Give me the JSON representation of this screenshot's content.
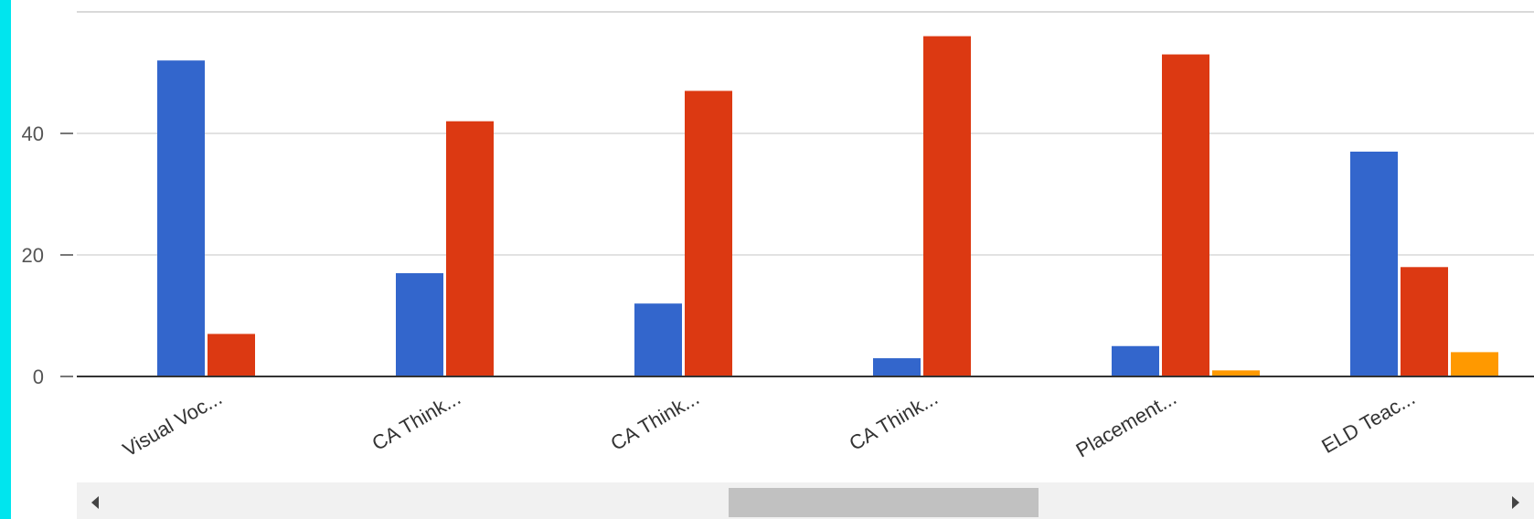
{
  "colors": {
    "edge": "#00e5ee",
    "gridline": "#d9d9d9",
    "axis": "#333333",
    "scroll_track": "#f1f1f1",
    "scroll_thumb": "#c1c1c1",
    "scroll_arrow": "#444444"
  },
  "scrollbar": {
    "left_icon": "triangle-left-icon",
    "right_icon": "triangle-right-icon",
    "thumb_start": 0.447,
    "thumb_end": 0.66
  },
  "chart_data": {
    "type": "bar",
    "categories": [
      "Visual Voc...",
      "CA Think...",
      "CA Think...",
      "CA Think...",
      "Placement...",
      "ELD Teac..."
    ],
    "series": [
      {
        "color": "#3366cc",
        "values": [
          52,
          17,
          12,
          3,
          5,
          37
        ]
      },
      {
        "color": "#dc3912",
        "values": [
          7,
          42,
          47,
          56,
          53,
          18
        ]
      },
      {
        "color": "#ff9900",
        "values": [
          0,
          0,
          0,
          0,
          1,
          4
        ]
      }
    ],
    "yticks": [
      "0",
      "20",
      "40"
    ],
    "ylim": [
      0,
      60
    ],
    "grid": true,
    "xlabel": "",
    "ylabel": "",
    "title": ""
  }
}
